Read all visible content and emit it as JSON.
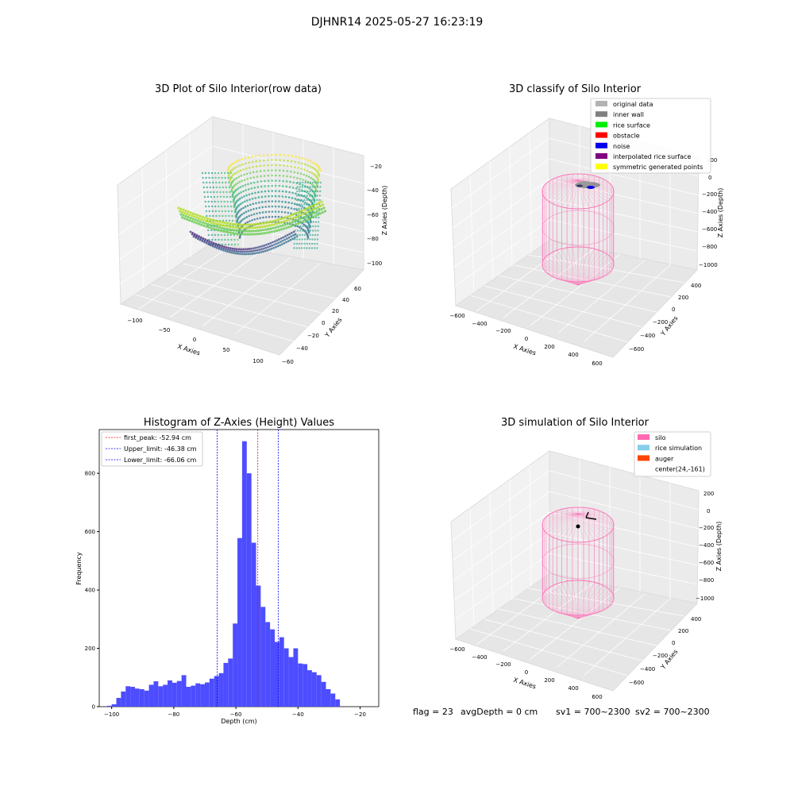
{
  "suptitle": "DJHNR14 2025-05-27 16:23:19",
  "chart_data": [
    {
      "type": "scatter",
      "title": "3D Plot of Silo Interior(row data)",
      "xlabel": "X Axies",
      "ylabel": "Y Axies",
      "zlabel": "Z Axies (Depth)",
      "x_ticks": [
        "−100",
        "−50",
        "0",
        "50",
        "100"
      ],
      "y_ticks": [
        "−60",
        "−40",
        "−20",
        "0",
        "20",
        "40",
        "60"
      ],
      "z_ticks": [
        "−100",
        "−80",
        "−60",
        "−40",
        "−20"
      ],
      "xlim": [
        -125,
        110
      ],
      "ylim": [
        -60,
        65
      ],
      "zlim": [
        -105,
        -18
      ],
      "colormap": "viridis",
      "grid": true
    },
    {
      "type": "scatter",
      "title": "3D classify of Silo Interior",
      "xlabel": "X Axies",
      "ylabel": "Y Axies",
      "zlabel": "Z Axies (Depth)",
      "x_ticks": [
        "−600",
        "−400",
        "−200",
        "0",
        "200",
        "400",
        "600"
      ],
      "y_ticks": [
        "−600",
        "−400",
        "−200",
        "0",
        "200",
        "400"
      ],
      "z_ticks": [
        "−1000",
        "−800",
        "−600",
        "−400",
        "−200",
        "0",
        "200"
      ],
      "legend_position": "top-right",
      "legend": [
        {
          "label": "original data",
          "color": "#b3b3b3"
        },
        {
          "label": "inner wall",
          "color": "#808080"
        },
        {
          "label": "rice surface",
          "color": "#00ee00"
        },
        {
          "label": "obstacle",
          "color": "#ff0000"
        },
        {
          "label": "noise",
          "color": "#0000ee"
        },
        {
          "label": "interpolated rice surface",
          "color": "#800080"
        },
        {
          "label": "symmetric generated points",
          "color": "#ffff00"
        }
      ],
      "silo_color": "#ff69b4",
      "grid": true
    },
    {
      "type": "bar",
      "title": "Histogram of Z-Axies (Height) Values",
      "xlabel": "Depth (cm)",
      "ylabel": "Frequency",
      "xlim": [
        -104,
        -14
      ],
      "ylim": [
        0,
        950
      ],
      "x_ticks": [
        -100,
        -80,
        -60,
        -40,
        -20
      ],
      "y_ticks": [
        0,
        200,
        400,
        600,
        800
      ],
      "bar_color": "#4d4dff",
      "bins": {
        "start": -101.5,
        "width": 1.5,
        "values": [
          3,
          8,
          30,
          52,
          70,
          68,
          62,
          60,
          55,
          75,
          87,
          70,
          75,
          90,
          82,
          88,
          108,
          68,
          72,
          80,
          77,
          83,
          96,
          105,
          115,
          150,
          165,
          285,
          578,
          910,
          800,
          562,
          415,
          342,
          290,
          265,
          222,
          238,
          200,
          170,
          200,
          148,
          146,
          125,
          118,
          108,
          85,
          60,
          45,
          25
        ]
      },
      "lines": [
        {
          "label": "first_peak: -52.94 cm",
          "x": -52.94,
          "color": "#ff0000"
        },
        {
          "label": "Upper_limit: -46.38 cm",
          "x": -46.38,
          "color": "#0000ff"
        },
        {
          "label": "Lower_limit: -66.06 cm",
          "x": -66.06,
          "color": "#0000ff"
        }
      ],
      "legend_position": "top-left"
    },
    {
      "type": "scatter",
      "title": "3D simulation of Silo Interior",
      "xlabel": "X Axies",
      "ylabel": "Y Axies",
      "zlabel": "Z Axies (Depth)",
      "x_ticks": [
        "−600",
        "−400",
        "−200",
        "0",
        "200",
        "400",
        "600"
      ],
      "y_ticks": [
        "−600",
        "−400",
        "−200",
        "0",
        "200",
        "400"
      ],
      "z_ticks": [
        "−1000",
        "−800",
        "−600",
        "−400",
        "−200",
        "0",
        "200"
      ],
      "legend_position": "top-right",
      "legend": [
        {
          "label": "silo",
          "color": "#ff69b4"
        },
        {
          "label": "rice simulation",
          "color": "#87ceeb"
        },
        {
          "label": "auger",
          "color": "#ff4500"
        },
        {
          "label": "center(24,-161)",
          "color": ""
        }
      ],
      "silo_color": "#ff69b4",
      "center": [
        24,
        -161
      ],
      "grid": true
    }
  ],
  "status": {
    "flag": "flag = 23",
    "avg_depth": "avgDepth = 0 cm",
    "sv1": "sv1 = 700~2300",
    "sv2": "sv2 = 700~2300"
  }
}
